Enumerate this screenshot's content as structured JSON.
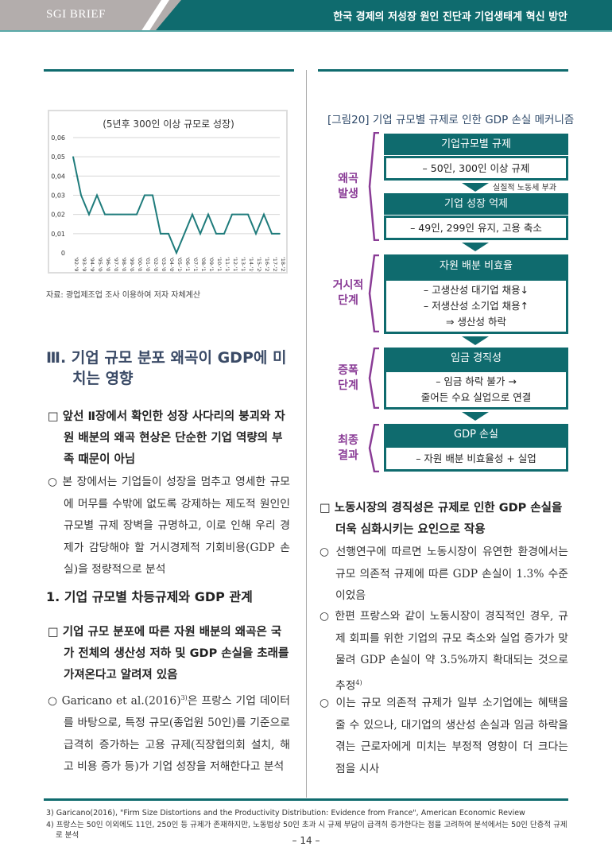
{
  "header": {
    "brand": "SGI BRIEF",
    "title": "한국 경제의 저성장 원인 진단과 기업생태계 혁신 방안"
  },
  "colors": {
    "teal": "#0f6b6e",
    "purple": "#8a3c96",
    "line": "#1e7b7b"
  },
  "chart_data": {
    "type": "line",
    "title": "(5년후 300인 이상 규모로 성장)",
    "categories": [
      "'92-'97",
      "'93-'98",
      "'94-'99",
      "'95-'00",
      "'96-'01",
      "'97-'02",
      "'98-'03",
      "'99-'04",
      "'00-'05",
      "'01-'06",
      "'02-'07",
      "'03-'08",
      "'04-'09",
      "'05-'10",
      "'06-'11",
      "'07-'12",
      "'08-'13",
      "'09-'14",
      "'10-'15",
      "'11-'16",
      "'12-'17",
      "'13-'18",
      "'14-'19",
      "'15-'20",
      "'16-'21",
      "'17-'22",
      "'18-'23"
    ],
    "values": [
      0.05,
      0.03,
      0.02,
      0.03,
      0.02,
      0.02,
      0.02,
      0.02,
      0.02,
      0.03,
      0.03,
      0.01,
      0.01,
      0,
      0.01,
      0.02,
      0.01,
      0.02,
      0.01,
      0.01,
      0.02,
      0.02,
      0.02,
      0.01,
      0.02,
      0.01,
      0.01
    ],
    "yticks": [
      "0",
      "0,01",
      "0,02",
      "0,03",
      "0,04",
      "0,05",
      "0,06"
    ],
    "ylim": [
      0,
      0.06
    ],
    "grid": true
  },
  "chart_source": "자료: 광업제조업 조사 이용하여 저자 자체계산",
  "left": {
    "section_title": "Ⅲ. 기업 규모 분포 왜곡이 GDP에 미치는 영향",
    "sq1": "□ 앞선 Ⅱ장에서 확인한 성장 사다리의 붕괴와 자원 배분의 왜곡 현상은 단순한 기업 역량의 부족 때문이 아님",
    "c1": "○ 본 장에서는 기업들이 성장을 멈추고 영세한 규모에 머무를 수밖에 없도록 강제하는 제도적 원인인 규모별 규제 장벽을 규명하고, 이로 인해 우리 경제가 감당해야 할 거시경제적 기회비용(GDP 손실)을 정량적으로 분석",
    "subsection": "1. 기업 규모별 차등규제와 GDP 관계",
    "sq2": "□ 기업 규모 분포에 따른 자원 배분의 왜곡은 국가 전체의 생산성 저하 및 GDP 손실을 초래를 가져온다고 알려져 있음",
    "c2a": "○ Garicano et al.(2016)",
    "c2sup": "3)",
    "c2b": "은 프랑스 기업 데이터를 바탕으로, 특정 규모(종업원 50인)를 기준으로 급격히 증가하는 고용 규제(직장협의회 설치, 해고 비용 증가 등)가 기업 성장을 저해한다고 분석"
  },
  "figure": {
    "title": "[그림20] 기업 규모별 규제로 인한 GDP 손실 메커니즘",
    "arrow_note": "실질적 노동세 부과",
    "stages": [
      "왜곡\n발생",
      "거시적\n단계",
      "증폭\n단계",
      "최종\n결과"
    ],
    "boxes": [
      {
        "head": "기업규모별 규제",
        "lines": [
          "– 50인, 300인 이상 규제"
        ]
      },
      {
        "head": "기업 성장 억제",
        "lines": [
          "– 49인, 299인 유지, 고용 축소"
        ]
      },
      {
        "head": "자원 배분 비효율",
        "lines": [
          "– 고생산성 대기업 채용↓",
          "– 저생산성 소기업 채용↑",
          "⇒ 생산성 하락"
        ]
      },
      {
        "head": "임금 경직성",
        "lines": [
          "– 임금 하락 불가 →",
          "줄어든 수요 실업으로 연결"
        ]
      },
      {
        "head": "GDP 손실",
        "lines": [
          "– 자원 배분 비효율성 + 실업"
        ]
      }
    ]
  },
  "right": {
    "sq": "□ 노동시장의 경직성은 규제로 인한 GDP 손실을 더욱 심화시키는 요인으로 작용",
    "c1": "○ 선행연구에 따르면 노동시장이 유연한 환경에서는 규모 의존적 규제에 따른 GDP 손실이 1.3% 수준이었음",
    "c2": "○ 한편 프랑스와 같이 노동시장이 경직적인 경우, 규제 회피를 위한 기업의 규모 축소와 실업 증가가 맞물려 GDP 손실이 약 3.5%까지 확대되는 것으로 추정",
    "c2sup": "4)",
    "c3": "○ 이는 규모 의존적 규제가 일부 소기업에는 혜택을 줄 수 있으나, 대기업의 생산성 손실과 임금 하락을 겪는 근로자에게 미치는 부정적 영향이 더 크다는 점을 시사"
  },
  "footnotes": [
    "3) Garicano(2016), \"Firm Size Distortions and the Productivity Distribution: Evidence from France\", American Economic Review",
    "4) 프랑스는 50인 이외에도 11인, 250인 등 규제가 존재하지만, 노동법상 50인 초과 시 규제 부담이 급격히 증가한다는 점을 고려하여 분석에서는 50인 단층적 규제로 분석"
  ],
  "page_number": "– 14 –"
}
